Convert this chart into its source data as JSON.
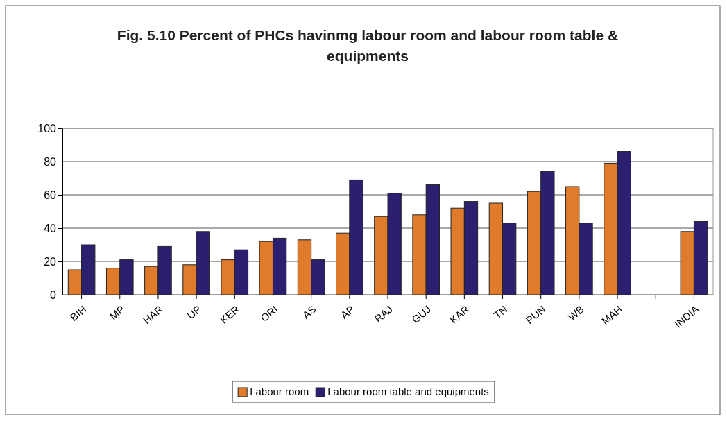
{
  "chart_data": {
    "type": "bar",
    "title": "Fig. 5.10  Percent of PHCs havinmg labour room and labour room table & equipments",
    "categories": [
      "BIH",
      "MP",
      "HAR",
      "UP",
      "KER",
      "ORI",
      "AS",
      "AP",
      "RAJ",
      "GUJ",
      "KAR",
      "TN",
      "PUN",
      "WB",
      "MAH",
      null,
      "INDIA"
    ],
    "series": [
      {
        "name": "Labour room",
        "color": "#e07b2c",
        "values": [
          15,
          16,
          17,
          18,
          21,
          32,
          33,
          37,
          47,
          48,
          52,
          55,
          62,
          65,
          79,
          null,
          38
        ]
      },
      {
        "name": "Labour room table and equipments",
        "color": "#2b2070",
        "values": [
          30,
          21,
          29,
          38,
          27,
          34,
          21,
          69,
          61,
          66,
          56,
          43,
          74,
          43,
          86,
          null,
          44
        ]
      }
    ],
    "ylim": [
      0,
      100
    ],
    "yticks": [
      0,
      20,
      40,
      60,
      80,
      100
    ],
    "grid": "y",
    "legend": "bottom"
  }
}
